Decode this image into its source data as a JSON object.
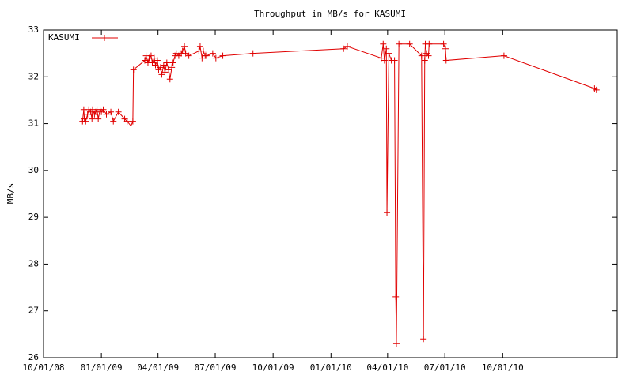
{
  "chart_data": {
    "type": "line",
    "title": "Throughput in MB/s for KASUMI",
    "y_label": "MB/s",
    "legend": "top left",
    "grid": false,
    "xlim": [
      "10/01/08",
      "04/01/11"
    ],
    "xticks": [
      "10/01/08",
      "01/01/09",
      "04/01/09",
      "07/01/09",
      "10/01/09",
      "01/01/10",
      "04/01/10",
      "07/01/10",
      "10/01/10"
    ],
    "ylim": [
      26,
      33
    ],
    "yticks": [
      26,
      27,
      28,
      29,
      30,
      31,
      32,
      33
    ],
    "x": [
      "12/02/08",
      "12/04/08",
      "12/05/08",
      "12/07/08",
      "12/10/08",
      "12/12/08",
      "12/15/08",
      "12/17/08",
      "12/18/08",
      "12/21/08",
      "12/23/08",
      "12/25/08",
      "12/27/08",
      "12/30/08",
      "01/01/09",
      "01/04/09",
      "01/09/09",
      "01/16/09",
      "01/20/09",
      "01/28/09",
      "02/07/09",
      "02/11/09",
      "02/17/09",
      "02/20/09",
      "02/21/09",
      "03/11/09",
      "03/13/09",
      "03/16/09",
      "03/18/09",
      "03/21/09",
      "03/23/09",
      "03/26/09",
      "03/28/09",
      "03/31/09",
      "04/02/09",
      "04/05/09",
      "04/07/09",
      "04/10/09",
      "04/12/09",
      "04/15/09",
      "04/18/09",
      "04/20/09",
      "04/23/09",
      "04/25/09",
      "04/28/09",
      "04/30/09",
      "05/04/09",
      "05/08/09",
      "05/10/09",
      "05/13/09",
      "05/15/09",
      "05/20/09",
      "06/05/09",
      "06/07/09",
      "06/10/09",
      "06/12/09",
      "06/15/09",
      "06/17/09",
      "06/27/09",
      "07/02/09",
      "07/13/09",
      "08/30/09",
      "01/21/10",
      "01/27/10",
      "03/22/10",
      "03/25/10",
      "03/27/10",
      "03/30/10",
      "03/31/10",
      "04/03/10",
      "04/07/10",
      "04/12/10",
      "04/14/10",
      "04/15/10",
      "04/19/10",
      "05/06/10",
      "05/25/10",
      "05/28/10",
      "05/30/10",
      "05/31/10",
      "06/02/10",
      "06/05/10",
      "06/06/10",
      "06/29/10",
      "07/02/10",
      "07/03/10",
      "10/03/10",
      "02/24/11",
      "02/27/11"
    ],
    "series": [
      {
        "name": "KASUMI",
        "color": "#e00000",
        "values": [
          31.05,
          31.3,
          31.1,
          31.05,
          31.2,
          31.3,
          31.25,
          31.1,
          31.3,
          31.2,
          31.25,
          31.3,
          31.1,
          31.3,
          31.25,
          31.3,
          31.2,
          31.25,
          31.05,
          31.25,
          31.1,
          31.05,
          30.95,
          31.05,
          32.15,
          32.35,
          32.45,
          32.3,
          32.4,
          32.45,
          32.3,
          32.4,
          32.25,
          32.35,
          32.15,
          32.2,
          32.05,
          32.25,
          32.1,
          32.3,
          32.15,
          31.95,
          32.2,
          32.3,
          32.45,
          32.5,
          32.45,
          32.5,
          32.55,
          32.65,
          32.5,
          32.45,
          32.55,
          32.65,
          32.4,
          32.55,
          32.45,
          32.45,
          32.5,
          32.4,
          32.45,
          32.5,
          32.6,
          32.65,
          32.4,
          32.7,
          32.35,
          32.6,
          29.1,
          32.5,
          32.35,
          32.35,
          27.3,
          26.3,
          32.7,
          32.7,
          32.45,
          26.4,
          32.35,
          32.7,
          32.5,
          32.45,
          32.7,
          32.7,
          32.6,
          32.35,
          32.45,
          31.75,
          31.72
        ]
      }
    ]
  }
}
